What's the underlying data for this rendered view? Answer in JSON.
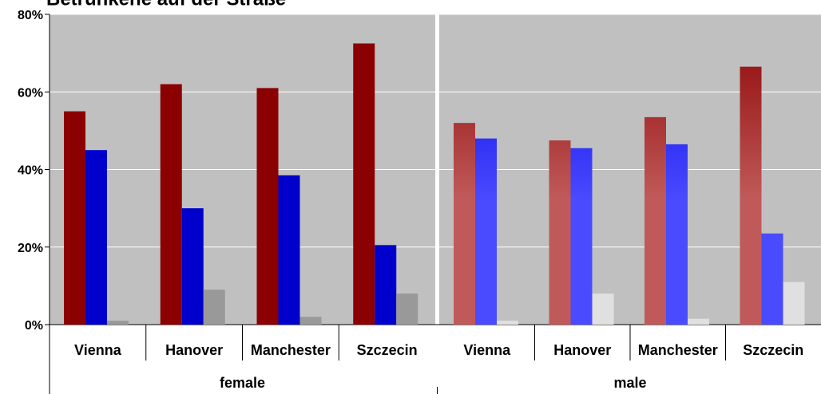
{
  "chart_data": {
    "type": "bar",
    "title": "Betrunkene auf der Straße",
    "ylim": [
      0,
      80
    ],
    "yticks": [
      {
        "value": 0,
        "label": "0%"
      },
      {
        "value": 20,
        "label": "20%"
      },
      {
        "value": 40,
        "label": "40%"
      },
      {
        "value": 60,
        "label": "60%"
      },
      {
        "value": 80,
        "label": "80%"
      }
    ],
    "grid": true,
    "panels": [
      {
        "label": "female",
        "gradient": false,
        "categories": [
          "Vienna",
          "Hanover",
          "Manchester",
          "Szczecin"
        ],
        "series": [
          {
            "color": "#8b0000",
            "values": [
              55,
              62,
              61,
              72.5
            ]
          },
          {
            "color": "#0000cc",
            "values": [
              45,
              30,
              38.5,
              20.5
            ]
          },
          {
            "color": "#999999",
            "values": [
              1,
              9,
              2,
              8
            ]
          }
        ]
      },
      {
        "label": "male",
        "gradient": true,
        "categories": [
          "Vienna",
          "Hanover",
          "Manchester",
          "Szczecin"
        ],
        "series": [
          {
            "color": "#8b0000",
            "color2": "#c05a5a",
            "values": [
              52,
              47.5,
              53.5,
              66.5
            ]
          },
          {
            "color": "#0000e0",
            "color2": "#4a4aff",
            "values": [
              48,
              45.5,
              46.5,
              23.5
            ]
          },
          {
            "color": "#808080",
            "color2": "#e0e0e0",
            "values": [
              1,
              8,
              1.5,
              11
            ]
          }
        ]
      }
    ]
  }
}
